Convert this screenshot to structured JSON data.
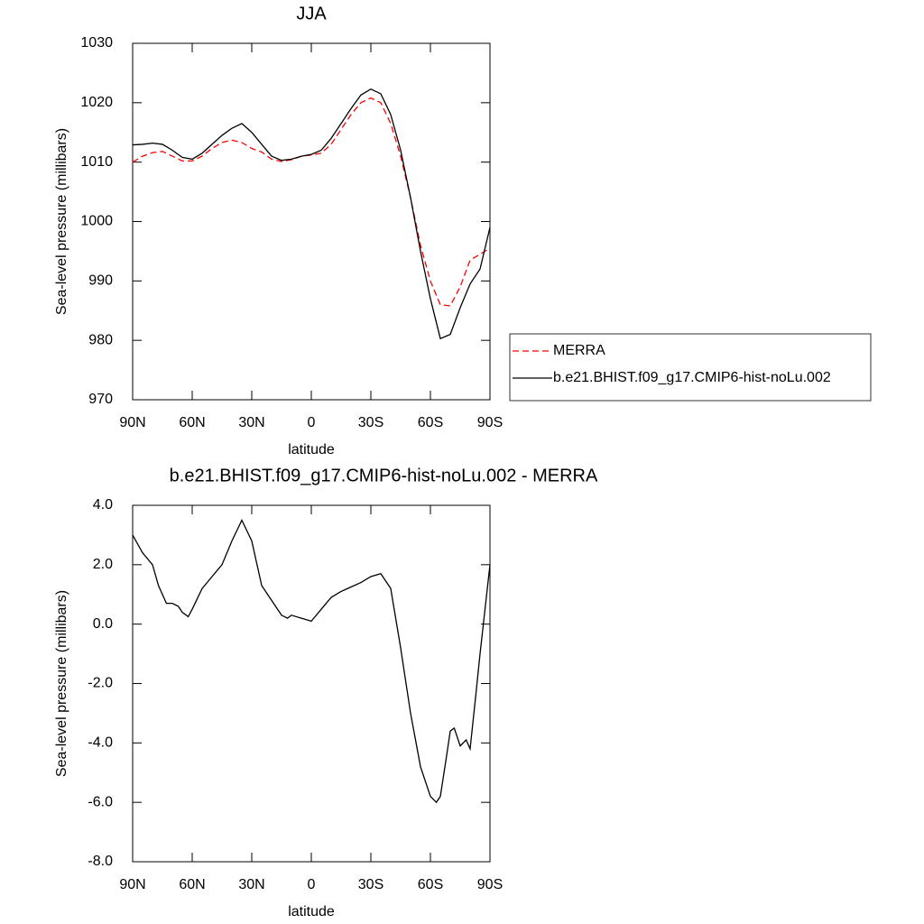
{
  "chart_data": [
    {
      "type": "line",
      "title": "JJA",
      "x_label": "latitude",
      "y_label": "Sea-level pressure (millibars)",
      "x": [
        90,
        85,
        80,
        75,
        70,
        65,
        60,
        55,
        50,
        45,
        40,
        35,
        30,
        25,
        20,
        15,
        10,
        5,
        0,
        -5,
        -10,
        -15,
        -20,
        -25,
        -30,
        -35,
        -40,
        -45,
        -50,
        -55,
        -60,
        -65,
        -70,
        -75,
        -80,
        -85,
        -90
      ],
      "xlim": [
        90,
        -90
      ],
      "xticks": [
        {
          "value": 90,
          "label": "90N"
        },
        {
          "value": 60,
          "label": "60N"
        },
        {
          "value": 30,
          "label": "30N"
        },
        0,
        {
          "value": -30,
          "label": "30S"
        },
        {
          "value": -60,
          "label": "60S"
        },
        {
          "value": -90,
          "label": "90S"
        }
      ],
      "ylim": [
        970,
        1030
      ],
      "yticks": [
        970,
        980,
        990,
        1000,
        1010,
        1020,
        1030
      ],
      "legend": "right",
      "series": [
        {
          "name": "MERRA",
          "color": "#ff0000",
          "style": "dashed",
          "values": [
            1010.0,
            1011.0,
            1011.6,
            1011.8,
            1011.0,
            1010.2,
            1010.2,
            1011.0,
            1012.3,
            1013.3,
            1013.7,
            1013.3,
            1012.3,
            1011.7,
            1010.5,
            1010.1,
            1010.4,
            1011.0,
            1011.2,
            1011.5,
            1013.0,
            1015.5,
            1018.0,
            1020.0,
            1020.8,
            1020.0,
            1016.5,
            1011.0,
            1004.0,
            996.0,
            990.0,
            986.0,
            985.8,
            989.0,
            993.5,
            994.5,
            995.5
          ]
        },
        {
          "name": "b.e21.BHIST.f09_g17.CMIP6-hist-noLu.002",
          "color": "#000000",
          "style": "solid",
          "values": [
            1012.9,
            1013.0,
            1013.2,
            1013.0,
            1012.0,
            1010.8,
            1010.5,
            1011.5,
            1013.0,
            1014.5,
            1015.7,
            1016.5,
            1015.0,
            1013.0,
            1011.0,
            1010.3,
            1010.5,
            1011.0,
            1011.3,
            1012.0,
            1014.0,
            1016.5,
            1019.0,
            1021.3,
            1022.3,
            1021.5,
            1018.0,
            1012.0,
            1004.0,
            995.0,
            987.0,
            980.3,
            981.0,
            985.5,
            989.5,
            992.0,
            999.0
          ]
        }
      ]
    },
    {
      "type": "line",
      "title": "b.e21.BHIST.f09_g17.CMIP6-hist-noLu.002 - MERRA",
      "x_label": "latitude",
      "y_label": "Sea-level pressure (millibars)",
      "x": [
        90,
        85,
        80,
        77,
        73,
        70,
        67,
        65,
        62,
        60,
        55,
        50,
        45,
        40,
        35,
        30,
        25,
        20,
        15,
        12,
        10,
        5,
        0,
        -5,
        -10,
        -15,
        -20,
        -25,
        -30,
        -35,
        -40,
        -45,
        -50,
        -55,
        -60,
        -63,
        -65,
        -68,
        -70,
        -72,
        -75,
        -78,
        -80,
        -83,
        -85,
        -90
      ],
      "xlim": [
        90,
        -90
      ],
      "xticks": [
        {
          "value": 90,
          "label": "90N"
        },
        {
          "value": 60,
          "label": "60N"
        },
        {
          "value": 30,
          "label": "30N"
        },
        0,
        {
          "value": -30,
          "label": "30S"
        },
        {
          "value": -60,
          "label": "60S"
        },
        {
          "value": -90,
          "label": "90S"
        }
      ],
      "ylim": [
        -8,
        4
      ],
      "yticks": [
        {
          "value": -8,
          "label": "-8.0"
        },
        {
          "value": -6,
          "label": "-6.0"
        },
        {
          "value": -4,
          "label": "-4.0"
        },
        {
          "value": -2,
          "label": "-2.0"
        },
        {
          "value": 0,
          "label": "0.0"
        },
        {
          "value": 2,
          "label": "2.0"
        },
        {
          "value": 4,
          "label": "4.0"
        }
      ],
      "series": [
        {
          "color": "#000000",
          "style": "solid",
          "values": [
            3.0,
            2.4,
            2.0,
            1.3,
            0.7,
            0.7,
            0.6,
            0.4,
            0.25,
            0.5,
            1.2,
            1.6,
            2.0,
            2.8,
            3.5,
            2.8,
            1.3,
            0.8,
            0.3,
            0.2,
            0.3,
            0.2,
            0.1,
            0.5,
            0.9,
            1.1,
            1.25,
            1.4,
            1.6,
            1.7,
            1.2,
            -0.8,
            -3.0,
            -4.8,
            -5.8,
            -6.0,
            -5.8,
            -4.5,
            -3.6,
            -3.5,
            -4.1,
            -3.9,
            -4.2,
            -2.3,
            -1.0,
            2.0
          ]
        }
      ]
    }
  ]
}
